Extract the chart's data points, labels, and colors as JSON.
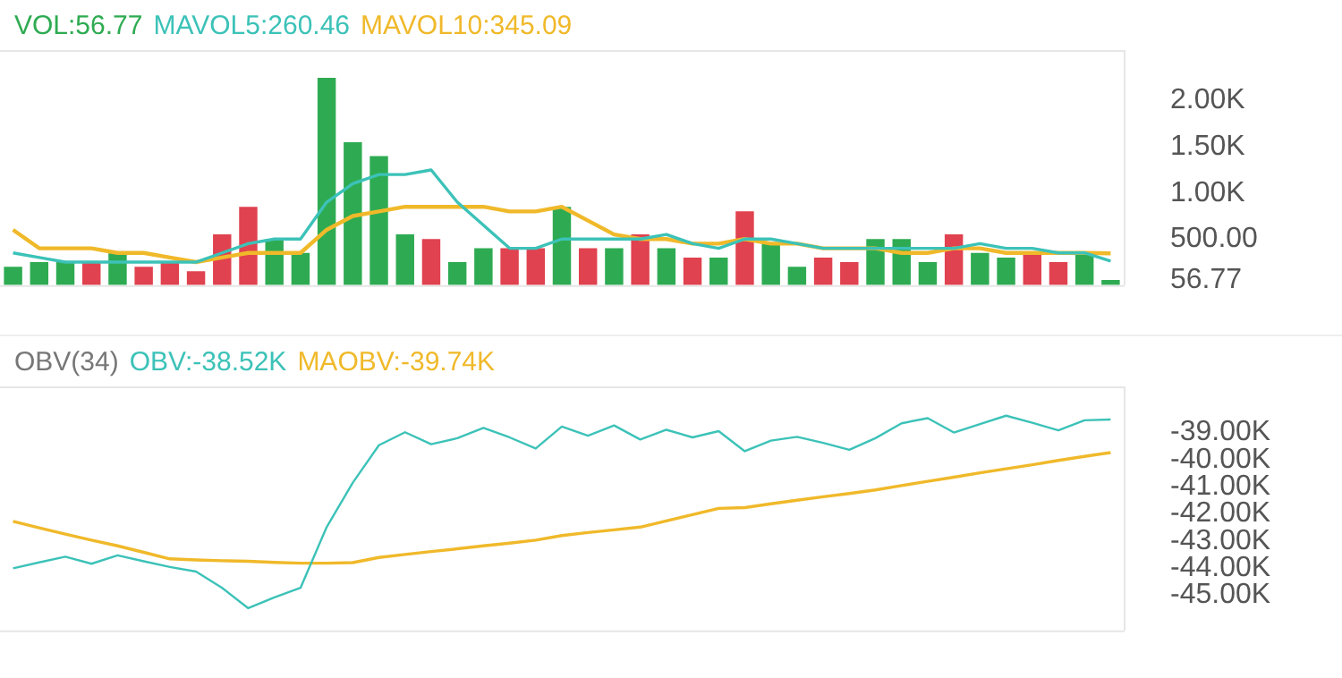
{
  "chart_data": [
    {
      "type": "bar",
      "categories": [
        null,
        null,
        null,
        null,
        null,
        null,
        null,
        null,
        null,
        null,
        null,
        null,
        null,
        null,
        null,
        null,
        null,
        null,
        null,
        null,
        null,
        null,
        null,
        null,
        null,
        null,
        null,
        null,
        null,
        null,
        null,
        null,
        null,
        null,
        null,
        null,
        null,
        null,
        null,
        null,
        null,
        null,
        null
      ],
      "series": [
        {
          "name": "VOL:56.77",
          "colors": [
            "#2eab52",
            "#2eab52",
            "#2eab52",
            "#e0424f",
            "#2eab52",
            "#e0424f",
            "#e0424f",
            "#e0424f",
            "#e0424f",
            "#e0424f",
            "#2eab52",
            "#2eab52",
            "#2eab52",
            "#2eab52",
            "#2eab52",
            "#2eab52",
            "#e0424f",
            "#2eab52",
            "#2eab52",
            "#e0424f",
            "#e0424f",
            "#2eab52",
            "#e0424f",
            "#2eab52",
            "#e0424f",
            "#2eab52",
            "#e0424f",
            "#2eab52",
            "#e0424f",
            "#2eab52",
            "#2eab52",
            "#e0424f",
            "#e0424f",
            "#2eab52",
            "#2eab52",
            "#2eab52",
            "#e0424f",
            "#2eab52",
            "#2eab52",
            "#e0424f",
            "#e0424f",
            "#2eab52",
            "#2eab52"
          ],
          "values": [
            200,
            250,
            250,
            250,
            350,
            200,
            250,
            150,
            550,
            850,
            500,
            350,
            2250,
            1550,
            1400,
            550,
            500,
            250,
            400,
            400,
            400,
            850,
            400,
            400,
            550,
            400,
            300,
            300,
            800,
            450,
            200,
            300,
            250,
            500,
            500,
            250,
            550,
            350,
            300,
            350,
            250,
            350,
            56.77
          ]
        },
        {
          "name": "MAVOL5:260.46",
          "type": "line",
          "color": "#3cc2b8",
          "values": [
            350,
            300,
            250,
            250,
            250,
            250,
            250,
            250,
            350,
            450,
            500,
            500,
            900,
            1100,
            1200,
            1200,
            1250,
            900,
            650,
            400,
            400,
            500,
            500,
            500,
            500,
            550,
            450,
            400,
            500,
            500,
            450,
            400,
            400,
            400,
            400,
            400,
            400,
            450,
            400,
            400,
            350,
            350,
            260.46
          ]
        },
        {
          "name": "MAVOL10:345.09",
          "type": "line",
          "color": "#f0b92a",
          "values": [
            600,
            400,
            400,
            400,
            350,
            350,
            300,
            250,
            300,
            350,
            350,
            350,
            600,
            750,
            800,
            850,
            850,
            850,
            850,
            800,
            800,
            850,
            700,
            550,
            500,
            500,
            450,
            450,
            500,
            450,
            450,
            400,
            400,
            400,
            350,
            350,
            400,
            400,
            350,
            350,
            350,
            350,
            345.09
          ]
        }
      ],
      "ylim": [
        0,
        2550
      ],
      "yticks": [
        {
          "value": 56.77,
          "label": "56.77"
        },
        {
          "value": 500,
          "label": "500.00"
        },
        {
          "value": 1000,
          "label": "1.00K"
        },
        {
          "value": 1500,
          "label": "1.50K"
        },
        {
          "value": 2000,
          "label": "2.00K"
        }
      ],
      "grid": false,
      "legend": "top left",
      "tick_labels": "y",
      "marker": "none"
    },
    {
      "type": "line",
      "title": "OBV(34)",
      "categories": [
        null,
        null,
        null,
        null,
        null,
        null,
        null,
        null,
        null,
        null,
        null,
        null,
        null,
        null,
        null,
        null,
        null,
        null,
        null,
        null,
        null,
        null,
        null,
        null,
        null,
        null,
        null,
        null,
        null,
        null,
        null,
        null,
        null,
        null,
        null,
        null,
        null,
        null,
        null,
        null,
        null,
        null,
        null
      ],
      "series": [
        {
          "name": "OBV:-38.52K",
          "color": "#3cc2b8",
          "values": [
            -44010,
            -43790,
            -43580,
            -43840,
            -43530,
            -43750,
            -43960,
            -44130,
            -44730,
            -45480,
            -45080,
            -44730,
            -42490,
            -40850,
            -39470,
            -38990,
            -39430,
            -39210,
            -38830,
            -39180,
            -39590,
            -38780,
            -39120,
            -38740,
            -39260,
            -38900,
            -39180,
            -38950,
            -39690,
            -39300,
            -39160,
            -39380,
            -39640,
            -39210,
            -38660,
            -38470,
            -39000,
            -38690,
            -38380,
            -38640,
            -38920,
            -38550,
            -38520
          ]
        },
        {
          "name": "MAOBV:-39.74K",
          "color": "#f0b92a",
          "values": [
            -42280,
            -42520,
            -42750,
            -42970,
            -43180,
            -43420,
            -43660,
            -43700,
            -43730,
            -43750,
            -43790,
            -43820,
            -43820,
            -43800,
            -43610,
            -43500,
            -43390,
            -43290,
            -43180,
            -43080,
            -42970,
            -42800,
            -42690,
            -42590,
            -42490,
            -42260,
            -42030,
            -41800,
            -41770,
            -41630,
            -41500,
            -41370,
            -41250,
            -41120,
            -40960,
            -40800,
            -40650,
            -40490,
            -40340,
            -40190,
            -40030,
            -39880,
            -39740
          ]
        }
      ],
      "ylim": [
        -46300,
        -37300
      ],
      "yticks": [
        {
          "value": -45000,
          "label": "-45.00K"
        },
        {
          "value": -44000,
          "label": "-44.00K"
        },
        {
          "value": -43000,
          "label": "-43.00K"
        },
        {
          "value": -42000,
          "label": "-42.00K"
        },
        {
          "value": -41000,
          "label": "-41.00K"
        },
        {
          "value": -40000,
          "label": "-40.00K"
        },
        {
          "value": -39000,
          "label": "-39.00K"
        }
      ],
      "grid": false,
      "legend": "top left",
      "tick_labels": "y",
      "marker": "none"
    }
  ]
}
